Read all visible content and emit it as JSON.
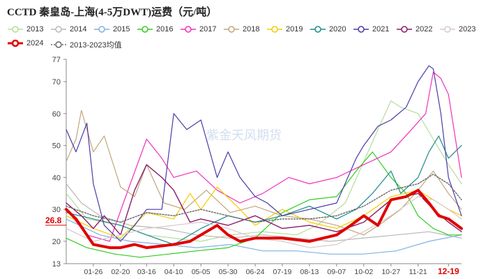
{
  "title": "CCTD 秦皇岛-上海(4-5万DWT)运费（元/吨）",
  "watermark": "紫金天风期货",
  "current_value_label": "26.8",
  "current_date_label": "12-19",
  "chart_data": {
    "type": "line",
    "title": "CCTD 秦皇岛-上海(4-5万DWT)运费（元/吨）",
    "xlabel": "",
    "ylabel": "",
    "x_ticks": [
      "01-26",
      "02-20",
      "03-16",
      "04-10",
      "05-05",
      "05-30",
      "06-24",
      "07-19",
      "08-13",
      "09-07",
      "10-02",
      "10-27",
      "11-21",
      "12-19"
    ],
    "x_domain": [
      "01-01",
      "12-31"
    ],
    "y_ticks": [
      13,
      20,
      30,
      40,
      50,
      60,
      70,
      77
    ],
    "ylim": [
      13,
      77
    ],
    "grid": false,
    "legend_position": "top",
    "series": [
      {
        "name": "2013",
        "color": "#b5dd9b",
        "width": 1.2,
        "dash": "",
        "x": [
          "01-01",
          "01-20",
          "02-20",
          "03-16",
          "04-10",
          "05-05",
          "06-01",
          "07-01",
          "08-01",
          "08-20",
          "09-15",
          "10-02",
          "10-15",
          "10-27",
          "11-05",
          "11-21",
          "12-05",
          "12-19",
          "12-31"
        ],
        "y": [
          35,
          27,
          25,
          22,
          21,
          20,
          22,
          23,
          22,
          25,
          32,
          45,
          55,
          64,
          62,
          60,
          52,
          44,
          38
        ]
      },
      {
        "name": "2014",
        "color": "#b7b7b7",
        "width": 1.2,
        "dash": "",
        "x": [
          "01-01",
          "01-15",
          "02-01",
          "03-01",
          "04-01",
          "05-01",
          "06-01",
          "07-01",
          "08-01",
          "09-01",
          "10-01",
          "11-01",
          "12-01",
          "12-31"
        ],
        "y": [
          38,
          32,
          28,
          25,
          24,
          22,
          21,
          22,
          21,
          20,
          21,
          22,
          23,
          21
        ]
      },
      {
        "name": "2015",
        "color": "#7fb3e0",
        "width": 1.2,
        "dash": "",
        "x": [
          "01-01",
          "02-01",
          "03-01",
          "04-01",
          "05-01",
          "06-01",
          "07-01",
          "08-01",
          "09-01",
          "10-01",
          "11-01",
          "12-01",
          "12-31"
        ],
        "y": [
          27,
          22,
          20,
          19,
          18,
          19,
          17,
          17,
          16,
          16,
          17,
          20,
          22
        ]
      },
      {
        "name": "2016",
        "color": "#33cc22",
        "width": 1.2,
        "dash": "",
        "x": [
          "01-01",
          "01-20",
          "02-15",
          "03-10",
          "04-05",
          "05-01",
          "05-30",
          "06-24",
          "07-19",
          "08-13",
          "09-07",
          "09-25",
          "10-10",
          "10-27",
          "11-10",
          "11-21",
          "12-05",
          "12-19",
          "12-31"
        ],
        "y": [
          21,
          18,
          16,
          15,
          16,
          17,
          18,
          21,
          29,
          33,
          34,
          42,
          48,
          40,
          35,
          28,
          24,
          22,
          22
        ]
      },
      {
        "name": "2017",
        "color": "#ee33bb",
        "width": 1.2,
        "dash": "",
        "x": [
          "01-01",
          "01-20",
          "02-10",
          "03-01",
          "03-16",
          "03-30",
          "04-10",
          "05-01",
          "05-20",
          "06-10",
          "07-01",
          "07-25",
          "08-13",
          "09-07",
          "10-02",
          "10-27",
          "11-15",
          "11-28",
          "12-05",
          "12-12",
          "12-19",
          "12-31"
        ],
        "y": [
          30,
          22,
          20,
          38,
          52,
          46,
          40,
          42,
          36,
          32,
          35,
          40,
          38,
          40,
          44,
          48,
          55,
          60,
          73,
          71,
          66,
          40
        ]
      },
      {
        "name": "2018",
        "color": "#c2a679",
        "width": 1.2,
        "dash": "",
        "x": [
          "01-01",
          "01-10",
          "01-15",
          "01-26",
          "02-05",
          "02-20",
          "03-05",
          "03-16",
          "04-01",
          "04-20",
          "05-10",
          "06-01",
          "06-24",
          "07-19",
          "08-13",
          "09-07",
          "10-02",
          "10-20",
          "11-05",
          "11-21",
          "12-05",
          "12-19",
          "12-31"
        ],
        "y": [
          45,
          52,
          61,
          48,
          53,
          37,
          34,
          44,
          32,
          30,
          36,
          29,
          31,
          28,
          27,
          25,
          22,
          26,
          30,
          36,
          42,
          35,
          30
        ]
      },
      {
        "name": "2019",
        "color": "#f5cc00",
        "width": 1.2,
        "dash": "",
        "x": [
          "01-01",
          "01-26",
          "02-20",
          "03-16",
          "04-10",
          "04-25",
          "05-05",
          "05-20",
          "06-10",
          "06-24",
          "07-19",
          "08-13",
          "09-07",
          "10-02",
          "10-27",
          "11-21",
          "12-05",
          "12-19",
          "12-31"
        ],
        "y": [
          28,
          24,
          21,
          29,
          27,
          35,
          30,
          37,
          30,
          25,
          30,
          26,
          24,
          28,
          34,
          36,
          33,
          30,
          28
        ]
      },
      {
        "name": "2020",
        "color": "#1a8a8a",
        "width": 1.2,
        "dash": "",
        "x": [
          "01-01",
          "01-26",
          "02-20",
          "03-16",
          "04-10",
          "05-05",
          "05-30",
          "06-24",
          "07-19",
          "08-13",
          "09-07",
          "09-25",
          "10-10",
          "10-27",
          "11-05",
          "11-21",
          "12-01",
          "12-10",
          "12-19",
          "12-31"
        ],
        "y": [
          29,
          27,
          25,
          22,
          19,
          24,
          28,
          26,
          28,
          31,
          27,
          30,
          35,
          42,
          35,
          40,
          48,
          53,
          46,
          50
        ]
      },
      {
        "name": "2021",
        "color": "#4a3aa8",
        "width": 1.2,
        "dash": "",
        "x": [
          "01-01",
          "01-10",
          "01-20",
          "01-26",
          "02-05",
          "02-20",
          "03-05",
          "03-16",
          "03-30",
          "04-10",
          "04-22",
          "05-05",
          "05-20",
          "05-30",
          "06-10",
          "06-24",
          "07-05",
          "07-19",
          "08-13",
          "09-07",
          "09-25",
          "10-02",
          "10-15",
          "10-27",
          "11-10",
          "11-21",
          "12-01",
          "12-05",
          "12-12",
          "12-19",
          "12-31"
        ],
        "y": [
          55,
          48,
          57,
          38,
          25,
          20,
          25,
          30,
          30,
          60,
          55,
          58,
          40,
          48,
          40,
          34,
          32,
          28,
          30,
          32,
          46,
          50,
          56,
          58,
          62,
          70,
          75,
          74,
          60,
          40,
          28
        ]
      },
      {
        "name": "2022",
        "color": "#8a1a6a",
        "width": 1.4,
        "dash": "",
        "x": [
          "01-01",
          "01-15",
          "01-26",
          "02-05",
          "02-20",
          "03-05",
          "03-16",
          "03-30",
          "04-10",
          "04-25",
          "05-05",
          "05-30",
          "06-24",
          "07-19",
          "08-13",
          "09-07",
          "10-02",
          "10-27",
          "11-21",
          "12-05",
          "12-19",
          "12-31"
        ],
        "y": [
          32,
          28,
          24,
          28,
          22,
          36,
          44,
          40,
          36,
          26,
          27,
          25,
          28,
          24,
          25,
          23,
          26,
          33,
          35,
          30,
          26,
          23
        ]
      },
      {
        "name": "2023",
        "color": "#d9c9c9",
        "width": 1.2,
        "dash": "",
        "x": [
          "01-01",
          "01-26",
          "02-20",
          "03-16",
          "04-10",
          "05-05",
          "05-30",
          "06-24",
          "07-19",
          "08-13",
          "09-07",
          "10-02",
          "10-27",
          "11-21",
          "12-05",
          "12-19",
          "12-31"
        ],
        "y": [
          24,
          20,
          22,
          24,
          25,
          26,
          24,
          21,
          20,
          18,
          19,
          23,
          28,
          34,
          33,
          30,
          27
        ]
      },
      {
        "name": "2024",
        "color": "#e00000",
        "width": 4,
        "dash": "",
        "x": [
          "01-01",
          "01-10",
          "01-20",
          "01-26",
          "02-10",
          "02-20",
          "03-05",
          "03-16",
          "04-10",
          "04-25",
          "05-05",
          "05-20",
          "05-30",
          "06-10",
          "06-24",
          "07-19",
          "08-13",
          "09-07",
          "09-20",
          "10-02",
          "10-15",
          "10-27",
          "11-10",
          "11-21",
          "12-01",
          "12-10",
          "12-19",
          "12-31"
        ],
        "y": [
          30,
          27,
          22,
          19,
          18,
          18,
          19,
          18,
          19,
          20,
          22,
          25,
          22,
          20,
          21,
          21,
          20,
          22,
          25,
          28,
          25,
          33,
          34,
          36,
          32,
          28,
          27,
          24
        ]
      },
      {
        "name": "2013-2023均值",
        "color": "#666666",
        "width": 1.4,
        "dash": "2,2",
        "x": [
          "01-01",
          "01-26",
          "02-20",
          "03-16",
          "04-10",
          "05-05",
          "05-30",
          "06-24",
          "07-19",
          "08-13",
          "09-07",
          "10-02",
          "10-27",
          "11-21",
          "12-05",
          "12-19",
          "12-31"
        ],
        "y": [
          31,
          28,
          26,
          29,
          28,
          30,
          28,
          26,
          27,
          27,
          28,
          31,
          36,
          38,
          41,
          38,
          33
        ]
      }
    ]
  }
}
